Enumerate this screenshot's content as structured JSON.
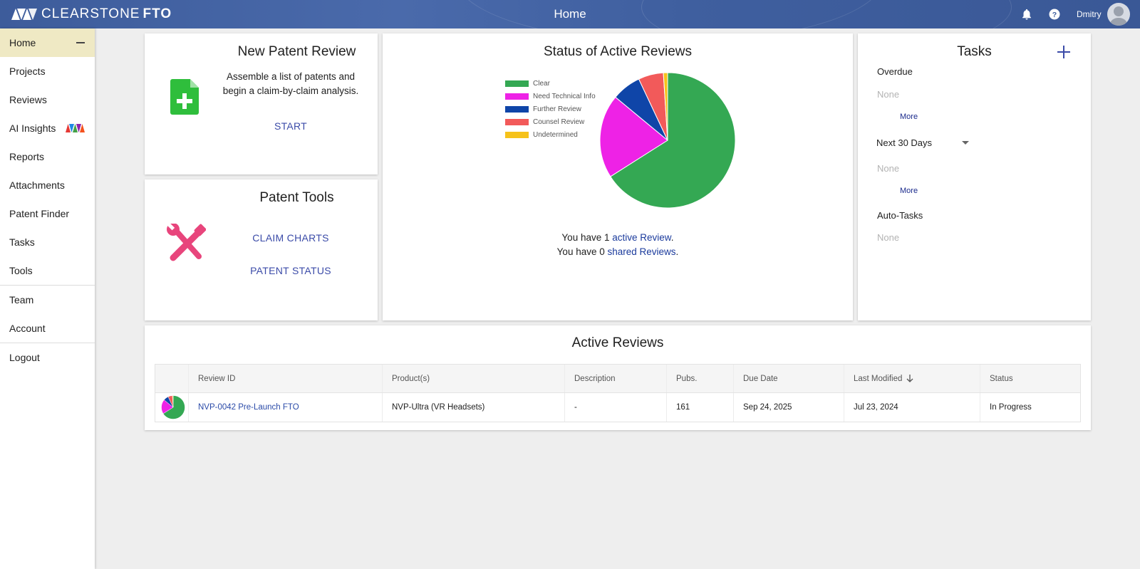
{
  "app": {
    "logo_text": "CLEARSTONE",
    "logo_bold": "FTO",
    "page_title": "Home",
    "user_name": "Dmitry"
  },
  "sidebar": {
    "items": [
      {
        "label": "Home",
        "active": true
      },
      {
        "label": "Projects"
      },
      {
        "label": "Reviews"
      },
      {
        "label": "AI Insights"
      },
      {
        "label": "Reports"
      },
      {
        "label": "Attachments"
      },
      {
        "label": "Patent Finder"
      },
      {
        "label": "Tasks"
      },
      {
        "label": "Tools"
      },
      {
        "label": "Team"
      },
      {
        "label": "Account"
      },
      {
        "label": "Logout"
      }
    ]
  },
  "new_review": {
    "title": "New Patent Review",
    "description_line1": "Assemble a list of patents and",
    "description_line2": "begin a claim-by-claim analysis.",
    "start_label": "START"
  },
  "patent_tools": {
    "title": "Patent Tools",
    "claim_charts_label": "CLAIM CHARTS",
    "patent_status_label": "PATENT STATUS"
  },
  "status": {
    "title": "Status of Active Reviews",
    "line1_prefix": "You have 1 ",
    "line1_link": "active Review",
    "line1_suffix": ".",
    "line2_prefix": "You have 0 ",
    "line2_link": "shared Reviews",
    "line2_suffix": "."
  },
  "chart_data": {
    "type": "pie",
    "categories": [
      "Clear",
      "Need Technical Info",
      "Further Review",
      "Counsel Review",
      "Undetermined"
    ],
    "values": [
      66,
      20,
      7,
      6,
      1
    ],
    "colors": [
      "#34a853",
      "#ee22e6",
      "#0f45a8",
      "#f25a5a",
      "#f6c21a"
    ],
    "legend_position": "left"
  },
  "tasks": {
    "title": "Tasks",
    "overdue_label": "Overdue",
    "overdue_none": "None",
    "overdue_more": "More",
    "range_label": "Next 30 Days",
    "range_none": "None",
    "range_more": "More",
    "auto_label": "Auto-Tasks",
    "auto_none": "None"
  },
  "active_reviews": {
    "title": "Active Reviews",
    "columns": [
      "Review ID",
      "Product(s)",
      "Description",
      "Pubs.",
      "Due Date",
      "Last Modified",
      "Status"
    ],
    "rows": [
      {
        "review_id": "NVP-0042 Pre-Launch FTO",
        "products": "NVP-Ultra (VR Headsets)",
        "description": "-",
        "pubs": "161",
        "due_date": "Sep 24, 2025",
        "last_modified": "Jul 23, 2024",
        "status": "In Progress"
      }
    ]
  }
}
